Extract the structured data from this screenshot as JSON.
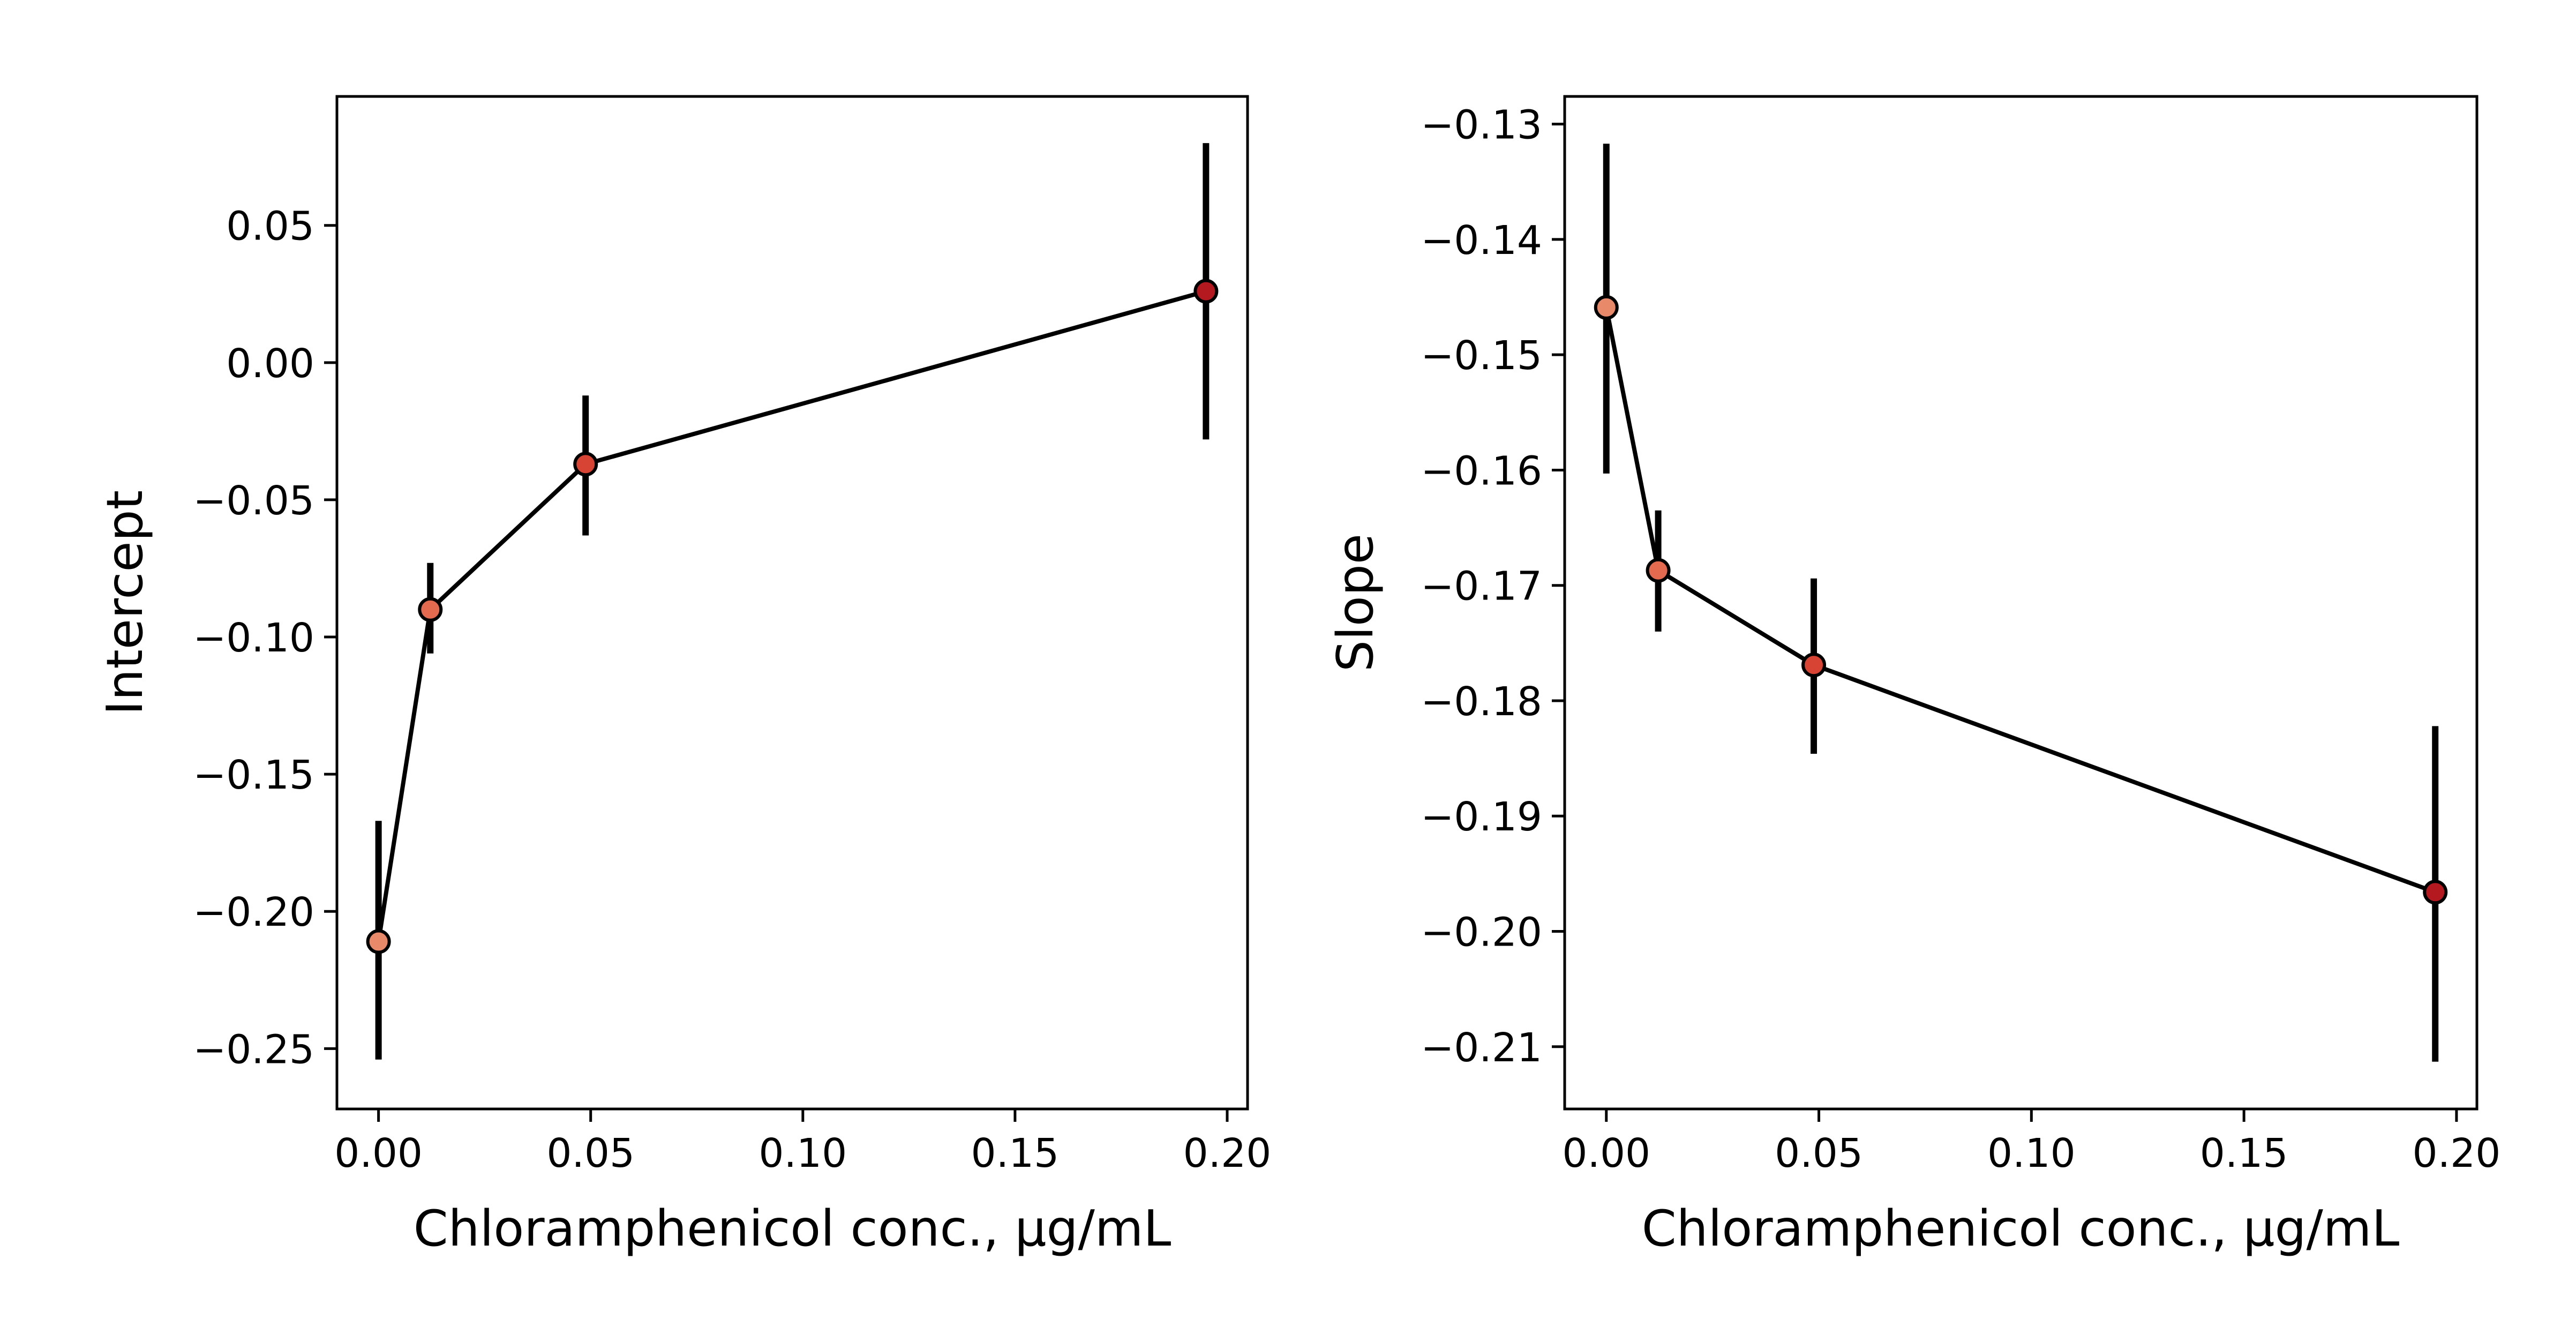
{
  "chart_data": [
    {
      "type": "line",
      "title": "",
      "xlabel": "Chloramphenicol conc., μg/mL",
      "ylabel": "Intercept",
      "xlim": [
        -0.0098,
        0.2048
      ],
      "ylim": [
        -0.272,
        0.097
      ],
      "xticks": [
        0.0,
        0.05,
        0.1,
        0.15,
        0.2
      ],
      "xtick_labels": [
        "0.00",
        "0.05",
        "0.10",
        "0.15",
        "0.20"
      ],
      "yticks": [
        -0.25,
        -0.2,
        -0.15,
        -0.1,
        -0.05,
        0.0,
        0.05
      ],
      "ytick_labels": [
        "−0.25",
        "−0.20",
        "−0.15",
        "−0.10",
        "−0.05",
        "0.00",
        "0.05"
      ],
      "grid": false,
      "line_color": "#000000",
      "points": [
        {
          "x": 0.0,
          "y": -0.211,
          "err_low": -0.254,
          "err_high": -0.167,
          "color": "#e8896a"
        },
        {
          "x": 0.0122,
          "y": -0.09,
          "err_low": -0.106,
          "err_high": -0.073,
          "color": "#e36a4f"
        },
        {
          "x": 0.0488,
          "y": -0.037,
          "err_low": -0.063,
          "err_high": -0.012,
          "color": "#d84433"
        },
        {
          "x": 0.195,
          "y": 0.026,
          "err_low": -0.028,
          "err_high": 0.08,
          "color": "#b3191e"
        }
      ]
    },
    {
      "type": "line",
      "title": "",
      "xlabel": "Chloramphenicol conc., μg/mL",
      "ylabel": "Slope",
      "xlim": [
        -0.0098,
        0.2048
      ],
      "ylim": [
        -0.2154,
        -0.1276
      ],
      "xticks": [
        0.0,
        0.05,
        0.1,
        0.15,
        0.2
      ],
      "xtick_labels": [
        "0.00",
        "0.05",
        "0.10",
        "0.15",
        "0.20"
      ],
      "yticks": [
        -0.21,
        -0.2,
        -0.19,
        -0.18,
        -0.17,
        -0.16,
        -0.15,
        -0.14,
        -0.13
      ],
      "ytick_labels": [
        "−0.21",
        "−0.20",
        "−0.19",
        "−0.18",
        "−0.17",
        "−0.16",
        "−0.15",
        "−0.14",
        "−0.13"
      ],
      "grid": false,
      "line_color": "#000000",
      "points": [
        {
          "x": 0.0,
          "y": -0.1459,
          "err_low": -0.1603,
          "err_high": -0.1317,
          "color": "#e8896a"
        },
        {
          "x": 0.0122,
          "y": -0.1687,
          "err_low": -0.174,
          "err_high": -0.1635,
          "color": "#e36a4f"
        },
        {
          "x": 0.0488,
          "y": -0.1769,
          "err_low": -0.1846,
          "err_high": -0.1694,
          "color": "#d84433"
        },
        {
          "x": 0.195,
          "y": -0.1966,
          "err_low": -0.2113,
          "err_high": -0.1822,
          "color": "#b3191e"
        }
      ]
    }
  ]
}
